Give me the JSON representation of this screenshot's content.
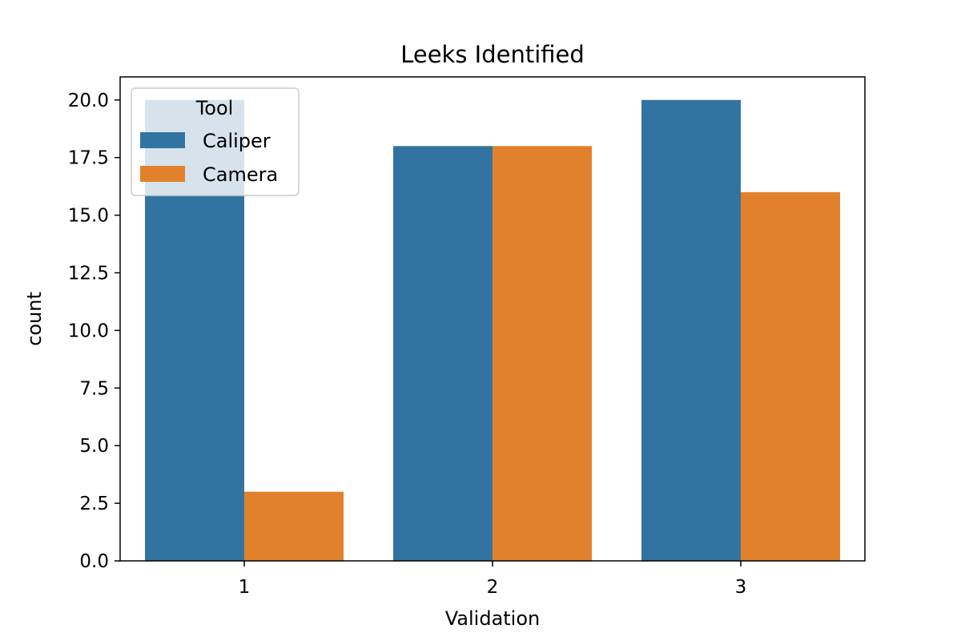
{
  "chart_data": {
    "type": "bar",
    "title": "Leeks Identified",
    "xlabel": "Validation",
    "ylabel": "count",
    "categories": [
      "1",
      "2",
      "3"
    ],
    "series": [
      {
        "name": "Caliper",
        "color": "#3274a1",
        "values": [
          20,
          18,
          20
        ]
      },
      {
        "name": "Camera",
        "color": "#e1812c",
        "values": [
          3,
          18,
          16
        ]
      }
    ],
    "ylim": [
      0,
      21
    ],
    "yticks": [
      {
        "value": 0,
        "label": "0.0"
      },
      {
        "value": 2.5,
        "label": "2.5"
      },
      {
        "value": 5,
        "label": "5.0"
      },
      {
        "value": 7.5,
        "label": "7.5"
      },
      {
        "value": 10,
        "label": "10.0"
      },
      {
        "value": 12.5,
        "label": "12.5"
      },
      {
        "value": 15,
        "label": "15.0"
      },
      {
        "value": 17.5,
        "label": "17.5"
      },
      {
        "value": 20,
        "label": "20.0"
      }
    ],
    "grid": false,
    "legend": {
      "title": "Tool",
      "position": "top-left"
    }
  }
}
